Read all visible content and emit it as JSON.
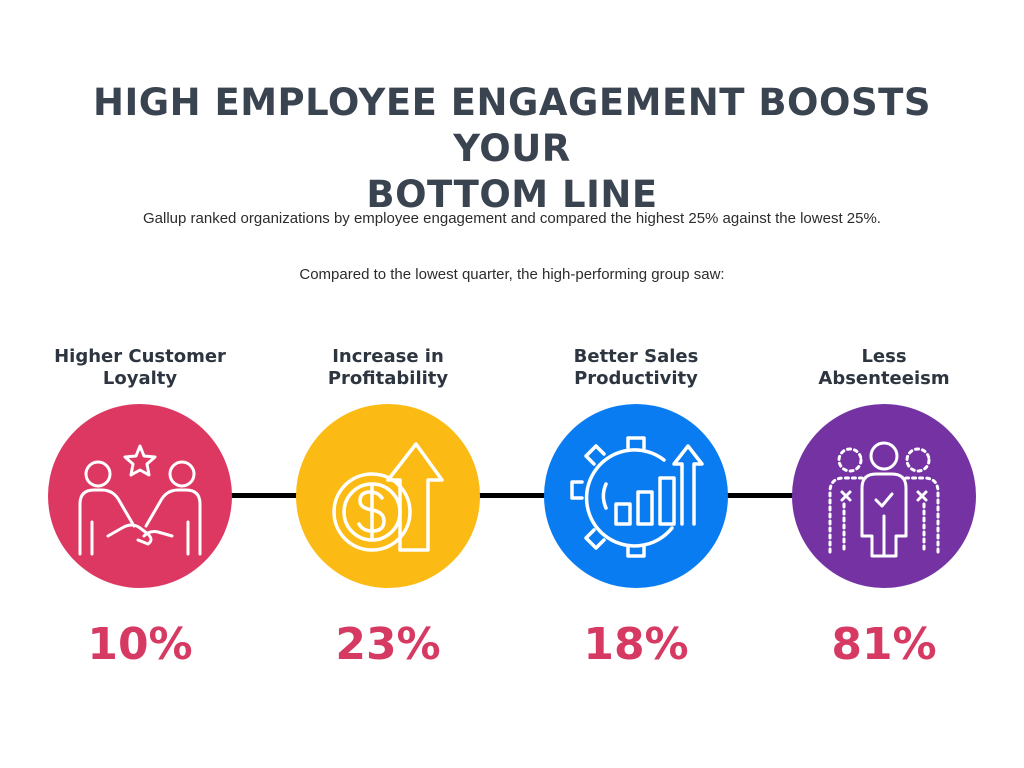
{
  "header": {
    "title_line1": "HIGH EMPLOYEE ENGAGEMENT BOOSTS YOUR",
    "title_line2": "BOTTOM LINE",
    "subtitle": "Gallup ranked organizations by employee engagement and compared the highest 25% against the lowest 25%.",
    "intro": "Compared to the lowest quarter, the high-performing group saw:"
  },
  "metrics": [
    {
      "label_line1": "Higher Customer",
      "label_line2": "Loyalty",
      "value": "10%",
      "color": "#dc3862",
      "icon": "handshake-star-icon"
    },
    {
      "label_line1": "Increase in",
      "label_line2": "Profitability",
      "value": "23%",
      "color": "#fbbb14",
      "icon": "coin-arrow-up-icon"
    },
    {
      "label_line1": "Better Sales",
      "label_line2": "Productivity",
      "value": "18%",
      "color": "#0a7cf2",
      "icon": "gear-bar-chart-icon"
    },
    {
      "label_line1": "Less",
      "label_line2": "Absenteeism",
      "value": "81%",
      "color": "#7432a2",
      "icon": "team-people-icon"
    }
  ],
  "colors": {
    "title": "#3a4450",
    "value": "#d63a63",
    "connector": "#000000"
  }
}
